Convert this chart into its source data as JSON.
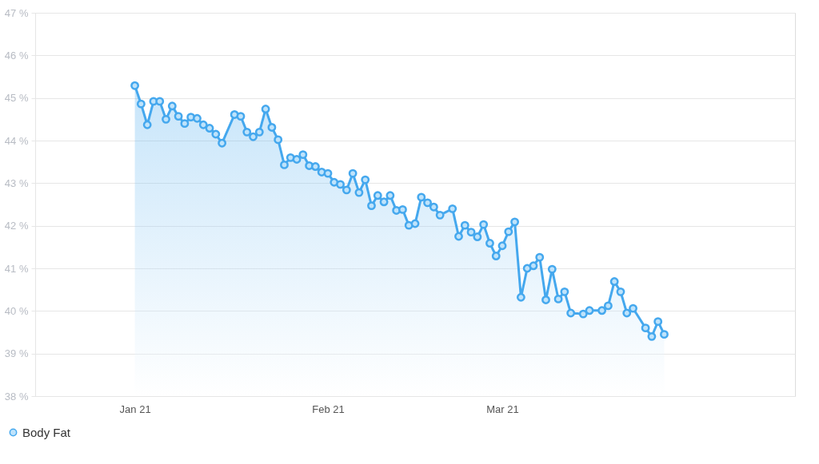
{
  "chart_data": {
    "type": "area",
    "legend": "bottom left",
    "grid": "y",
    "marker": "circle",
    "line_style": "solid",
    "xlim": [
      "2020-12-16",
      "2021-04-17"
    ],
    "xticks": [
      {
        "value": "2021-01-01",
        "label": "Jan 21"
      },
      {
        "value": "2021-02-01",
        "label": "Feb 21"
      },
      {
        "value": "2021-03-01",
        "label": "Mar 21"
      }
    ],
    "ylim": [
      38,
      47
    ],
    "yticks": [
      {
        "value": 38,
        "label": "38 %"
      },
      {
        "value": 39,
        "label": "39 %"
      },
      {
        "value": 40,
        "label": "40 %"
      },
      {
        "value": 41,
        "label": "41 %"
      },
      {
        "value": 42,
        "label": "42 %"
      },
      {
        "value": 43,
        "label": "43 %"
      },
      {
        "value": 44,
        "label": "44 %"
      },
      {
        "value": 45,
        "label": "45 %"
      },
      {
        "value": 46,
        "label": "46 %"
      },
      {
        "value": 47,
        "label": "47 %"
      }
    ],
    "x": [
      "2021-01-01",
      "2021-01-02",
      "2021-01-03",
      "2021-01-04",
      "2021-01-05",
      "2021-01-06",
      "2021-01-07",
      "2021-01-08",
      "2021-01-09",
      "2021-01-10",
      "2021-01-11",
      "2021-01-12",
      "2021-01-13",
      "2021-01-14",
      "2021-01-15",
      "2021-01-17",
      "2021-01-18",
      "2021-01-19",
      "2021-01-20",
      "2021-01-21",
      "2021-01-22",
      "2021-01-23",
      "2021-01-24",
      "2021-01-25",
      "2021-01-26",
      "2021-01-27",
      "2021-01-28",
      "2021-01-29",
      "2021-01-30",
      "2021-01-31",
      "2021-02-01",
      "2021-02-02",
      "2021-02-03",
      "2021-02-04",
      "2021-02-05",
      "2021-02-06",
      "2021-02-07",
      "2021-02-08",
      "2021-02-09",
      "2021-02-10",
      "2021-02-11",
      "2021-02-12",
      "2021-02-13",
      "2021-02-14",
      "2021-02-15",
      "2021-02-16",
      "2021-02-17",
      "2021-02-18",
      "2021-02-19",
      "2021-02-21",
      "2021-02-22",
      "2021-02-23",
      "2021-02-24",
      "2021-02-25",
      "2021-02-26",
      "2021-02-27",
      "2021-02-28",
      "2021-03-01",
      "2021-03-02",
      "2021-03-03",
      "2021-03-04",
      "2021-03-05",
      "2021-03-06",
      "2021-03-07",
      "2021-03-08",
      "2021-03-09",
      "2021-03-10",
      "2021-03-11",
      "2021-03-12",
      "2021-03-14",
      "2021-03-15",
      "2021-03-17",
      "2021-03-18",
      "2021-03-19",
      "2021-03-20",
      "2021-03-21",
      "2021-03-22",
      "2021-03-24",
      "2021-03-25",
      "2021-03-26",
      "2021-03-27"
    ],
    "series": [
      {
        "name": "Body Fat",
        "color": "#45a8ee",
        "values": [
          45.29,
          44.86,
          44.37,
          44.92,
          44.92,
          44.5,
          44.81,
          44.57,
          44.4,
          44.55,
          44.52,
          44.37,
          44.29,
          44.15,
          43.94,
          44.61,
          44.57,
          44.2,
          44.09,
          44.2,
          44.74,
          44.31,
          44.02,
          43.43,
          43.6,
          43.56,
          43.67,
          43.41,
          43.39,
          43.26,
          43.23,
          43.02,
          42.97,
          42.84,
          43.23,
          42.78,
          43.08,
          42.47,
          42.71,
          42.56,
          42.71,
          42.36,
          42.38,
          42.01,
          42.05,
          42.67,
          42.54,
          42.44,
          42.25,
          42.4,
          41.75,
          42.01,
          41.85,
          41.74,
          42.03,
          41.59,
          41.29,
          41.53,
          41.86,
          42.09,
          40.32,
          41.0,
          41.06,
          41.26,
          40.26,
          40.98,
          40.28,
          40.45,
          39.95,
          39.93,
          40.01,
          40.01,
          40.12,
          40.69,
          40.45,
          39.95,
          40.06,
          39.6,
          39.4,
          39.75,
          39.45
        ]
      }
    ]
  }
}
